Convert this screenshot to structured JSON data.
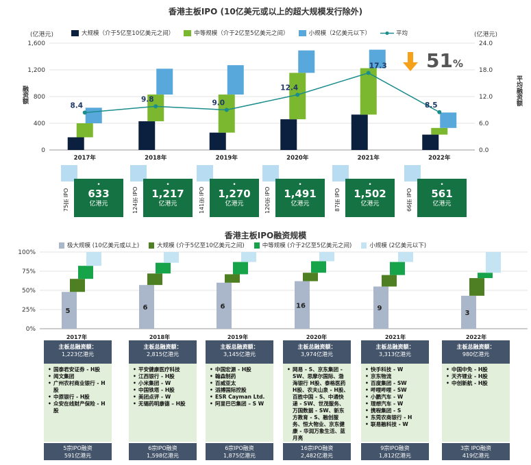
{
  "top": {
    "title": "香港主板IPO (10亿美元或以上的超大规模发行除外)",
    "left_unit": "(亿港元)",
    "right_unit": "(亿港元)",
    "left_axis_label": "融资额",
    "right_axis_label": "平均融资额",
    "left_ticks": [
      "0",
      "400",
      "800",
      "1,200",
      "1,600"
    ],
    "right_ticks": [
      "0.0",
      "6.0",
      "12.0",
      "18.0",
      "24.0"
    ],
    "legend": [
      "大规模（介于5亿至10亿美元之间）",
      "中等规模（介于2亿至5亿美元之间）",
      "小规模（2亿美元以下）",
      "平均"
    ],
    "colors": {
      "large": "#0b1f3f",
      "medium": "#7cb82f",
      "small": "#58a8dc",
      "avg": "#1a8c8c"
    },
    "change_pct": "51",
    "change_pct_sign": "%"
  },
  "cards": [
    {
      "count": "75宗 IPO",
      "value": "633",
      "unit": "亿港元"
    },
    {
      "count": "124宗 IPO",
      "value": "1,217",
      "unit": "亿港元"
    },
    {
      "count": "141宗 IPO",
      "value": "1,270",
      "unit": "亿港元"
    },
    {
      "count": "120宗 IPO",
      "value": "1,491",
      "unit": "亿港元"
    },
    {
      "count": "87宗 IPO",
      "value": "1,502",
      "unit": "亿港元"
    },
    {
      "count": "66宗 IPO",
      "value": "561",
      "unit": "亿港元"
    }
  ],
  "bottom": {
    "title": "香港主板IPO融资规模",
    "legend": [
      "极大规模 (10亿美元或以上)",
      "大规模 (介于5亿至10亿美元之间)",
      "中等规模 (介于2亿至5亿美元之间)",
      "小规模 (2亿美元以下)"
    ],
    "colors": {
      "xl": "#aab6c9",
      "large": "#4f7f23",
      "medium": "#17a34a",
      "small": "#c4e4f4"
    },
    "ticks": [
      "0%",
      "25%",
      "50%",
      "75%",
      "100%"
    ]
  },
  "chart_data": [
    {
      "type": "bar",
      "title": "香港主板IPO (10亿美元或以上的超大规模发行除外)",
      "categories": [
        "2017年",
        "2018年",
        "2019年",
        "2020年",
        "2021年",
        "2022年"
      ],
      "ylabel": "融资额",
      "y2label": "平均融资额",
      "ylim": [
        0,
        1600
      ],
      "y2lim": [
        0,
        24
      ],
      "stacked": true,
      "series": [
        {
          "name": "大规模（介于5亿至10亿美元之间）",
          "values": [
            190,
            430,
            260,
            460,
            530,
            230
          ]
        },
        {
          "name": "中等规模（介于2亿至5亿美元之间）",
          "values": [
            210,
            400,
            570,
            695,
            695,
            100
          ]
        },
        {
          "name": "小规模（2亿美元以下）",
          "values": [
            233,
            387,
            440,
            336,
            277,
            231
          ]
        },
        {
          "name": "平均",
          "type": "line",
          "axis": "right",
          "values": [
            8.4,
            9.8,
            9.0,
            12.4,
            17.3,
            8.5
          ],
          "labels": [
            "8.4",
            "9.8",
            "9.0",
            "12.4",
            "17.3",
            "8.5"
          ]
        }
      ]
    },
    {
      "type": "bar",
      "title": "香港主板IPO融资规模",
      "categories": [
        "2017年",
        "2018年",
        "2019年",
        "2020年",
        "2021年",
        "2022年"
      ],
      "ylim": [
        0,
        100
      ],
      "stacked": true,
      "series": [
        {
          "name": "极大规模 (10亿美元或以上)",
          "values": [
            48,
            57,
            60,
            62,
            55,
            43
          ],
          "labels": [
            "5",
            "6",
            "6",
            "16",
            "9",
            "3"
          ]
        },
        {
          "name": "大规模 (介于5亿至10亿美元之间)",
          "values": [
            17,
            15,
            11,
            11,
            15,
            23
          ]
        },
        {
          "name": "中等规模 (介于2亿至5亿美元之间)",
          "values": [
            17,
            14,
            16,
            15,
            17,
            7
          ]
        },
        {
          "name": "小规模 (2亿美元以下)",
          "values": [
            18,
            14,
            13,
            12,
            13,
            27
          ]
        }
      ]
    }
  ],
  "columns": [
    {
      "year": "2017年",
      "head": "主板总融资额：",
      "amount": "1,223亿港元",
      "items": [
        "国泰君安证券 - H股",
        "阅文集团",
        "广州农村商业银行 - H股",
        "中原银行 - H股",
        "众安在线财产保险 - H股"
      ],
      "foot1": "5宗IPO融资",
      "foot2": "591亿港元"
    },
    {
      "year": "2018年",
      "head": "主板总融资额：",
      "amount": "2,815亿港元",
      "items": [
        "平安健康医疗科技",
        "江西银行 - H股",
        "小米集团 - W",
        "中国铁塔 - H股",
        "美团点评 - W",
        "无锡药明康德 – H股"
      ],
      "foot1": "6宗IPO融资",
      "foot2": "1,598亿港元"
    },
    {
      "year": "2019年",
      "head": "主板总融资额：",
      "amount": "3,145亿港元",
      "items": [
        "中国宏源 - H股",
        "翰森制药",
        "百威亚太",
        "滔搏国际控股",
        "ESR Cayman Ltd.",
        "阿里巴巴集团 – S W"
      ],
      "foot1": "6宗IPO融资",
      "foot2": "1,875亿港元"
    },
    {
      "year": "2020年",
      "head": "主板总融资额：",
      "amount": "3,974亿港元",
      "items": [
        "网易 - S、京东集团 - SW、思摩尔国际、渤海银行 H股、泰格医药 H股、农夫山泉 - H股、百胜中国 - S、中通快递 - SW、世茂服务、万国数据 - SW、新东方教育 - S、融创服务、恒大物业、京东健康 - 华润万象生活、蓝月亮"
      ],
      "foot1": "16宗IPO融资",
      "foot2": "2,482亿港元"
    },
    {
      "year": "2021年",
      "head": "主板总融资额：",
      "amount": "3,313亿港元",
      "items": [
        "快手科技 - W",
        "京东物流",
        "百度集团 - SW",
        "哔哩哔哩 - SW",
        "小鹏汽车 - W",
        "理想汽车 - W",
        "携程集团 - S",
        "东莞农商银行 - H",
        "联易融科技 - W"
      ],
      "foot1": "9宗IPO融资",
      "foot2": "1,812亿港元"
    },
    {
      "year": "2022年",
      "head": "主板总融资额：",
      "amount": "980亿港元",
      "items": [
        "中国中免 - H股",
        "天齐锂业 - H股",
        "中创新航 - H股"
      ],
      "foot1": "3宗 IPO融资",
      "foot2": "419亿港元"
    }
  ]
}
